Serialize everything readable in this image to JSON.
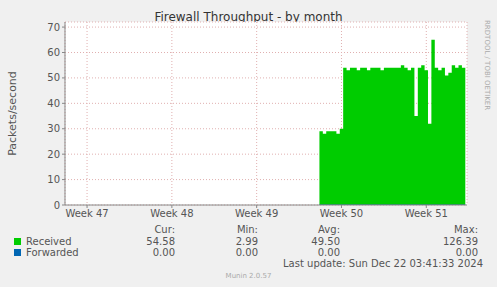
{
  "chart_data": {
    "type": "area",
    "title": "Firewall Throughput - by month",
    "y_label": "Packets/second",
    "side_label": "RRDTOOL / TOBI OETIKER",
    "x": [
      49.74,
      49.78,
      49.82,
      49.86,
      49.9,
      49.94,
      49.98,
      50.02,
      50.06,
      50.1,
      50.14,
      50.18,
      50.22,
      50.26,
      50.3,
      50.34,
      50.38,
      50.42,
      50.46,
      50.5,
      50.54,
      50.58,
      50.62,
      50.66,
      50.7,
      50.74,
      50.78,
      50.82,
      50.86,
      50.9,
      50.94,
      50.98,
      51.02,
      51.06,
      51.1,
      51.14,
      51.18,
      51.22,
      51.26,
      51.3,
      51.34,
      51.38,
      51.42,
      51.46
    ],
    "series": [
      {
        "name": "Received",
        "color": "#00cc00",
        "values": [
          29,
          28,
          29,
          29,
          29,
          28,
          30,
          54,
          53,
          54,
          54,
          53,
          54,
          54,
          53,
          54,
          54,
          54,
          53,
          54,
          54,
          54,
          54,
          54,
          55,
          54,
          53,
          54,
          35,
          54,
          55,
          53,
          32,
          65,
          54,
          53,
          54,
          51,
          52,
          55,
          54,
          55,
          54,
          54
        ],
        "cur": "54.58",
        "min": "2.99",
        "avg": "49.50",
        "max": "126.39"
      },
      {
        "name": "Forwarded",
        "color": "#0066b3",
        "values": [
          0,
          0,
          0,
          0,
          0,
          0,
          0,
          0,
          0,
          0,
          0,
          0,
          0,
          0,
          0,
          0,
          0,
          0,
          0,
          0,
          0,
          0,
          0,
          0,
          0,
          0,
          0,
          0,
          0,
          0,
          0,
          0,
          0,
          0,
          0,
          0,
          0,
          0,
          0,
          0,
          0,
          0,
          0,
          0
        ],
        "cur": "0.00",
        "min": "0.00",
        "avg": "0.00",
        "max": "0.00"
      }
    ],
    "columns": [
      "Cur:",
      "Min:",
      "Avg:",
      "Max:"
    ],
    "xlim": [
      46.74,
      51.48
    ],
    "xticks": [
      {
        "value": 47,
        "label": "Week 47"
      },
      {
        "value": 48,
        "label": "Week 48"
      },
      {
        "value": 49,
        "label": "Week 49"
      },
      {
        "value": 50,
        "label": "Week 50"
      },
      {
        "value": 51,
        "label": "Week 51"
      }
    ],
    "ylim": [
      0,
      72
    ],
    "yticks": [
      0,
      10,
      20,
      30,
      40,
      50,
      60,
      70
    ],
    "grid": true,
    "last_update": "Last update: Sun Dec 22 03:41:33 2024",
    "footer": "Munin 2.0.57"
  }
}
